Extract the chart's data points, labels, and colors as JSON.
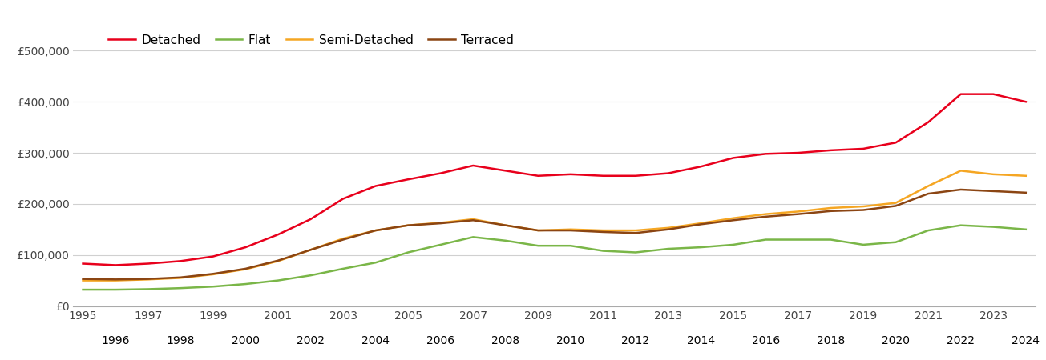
{
  "years": [
    1995,
    1996,
    1997,
    1998,
    1999,
    2000,
    2001,
    2002,
    2003,
    2004,
    2005,
    2006,
    2007,
    2008,
    2009,
    2010,
    2011,
    2012,
    2013,
    2014,
    2015,
    2016,
    2017,
    2018,
    2019,
    2020,
    2021,
    2022,
    2023,
    2024
  ],
  "detached": [
    83000,
    80000,
    83000,
    88000,
    97000,
    115000,
    140000,
    170000,
    210000,
    235000,
    248000,
    260000,
    275000,
    265000,
    255000,
    258000,
    255000,
    255000,
    260000,
    273000,
    290000,
    298000,
    300000,
    305000,
    308000,
    320000,
    360000,
    415000,
    415000,
    400000
  ],
  "flat": [
    32000,
    32000,
    33000,
    35000,
    38000,
    43000,
    50000,
    60000,
    73000,
    85000,
    105000,
    120000,
    135000,
    128000,
    118000,
    118000,
    108000,
    105000,
    112000,
    115000,
    120000,
    130000,
    130000,
    130000,
    120000,
    125000,
    148000,
    158000,
    155000,
    150000
  ],
  "semi_detached": [
    50000,
    50000,
    52000,
    55000,
    62000,
    72000,
    88000,
    110000,
    132000,
    148000,
    158000,
    163000,
    170000,
    158000,
    148000,
    150000,
    148000,
    148000,
    153000,
    162000,
    172000,
    180000,
    185000,
    192000,
    195000,
    202000,
    235000,
    265000,
    258000,
    255000
  ],
  "terraced": [
    53000,
    52000,
    53000,
    56000,
    63000,
    73000,
    89000,
    110000,
    130000,
    148000,
    158000,
    162000,
    168000,
    158000,
    148000,
    148000,
    145000,
    143000,
    150000,
    160000,
    168000,
    175000,
    180000,
    186000,
    188000,
    196000,
    220000,
    228000,
    225000,
    222000
  ],
  "colors": {
    "detached": "#e8001c",
    "flat": "#7ab648",
    "semi_detached": "#f5a623",
    "terraced": "#8b4513"
  },
  "ylim": [
    0,
    550000
  ],
  "yticks": [
    0,
    100000,
    200000,
    300000,
    400000,
    500000
  ],
  "ytick_labels": [
    "£0",
    "£100,000",
    "£200,000",
    "£300,000",
    "£400,000",
    "£500,000"
  ],
  "line_width": 1.8,
  "background_color": "#ffffff",
  "grid_color": "#d0d0d0",
  "legend_labels": [
    "Detached",
    "Flat",
    "Semi-Detached",
    "Terraced"
  ],
  "xlim_left": 1994.7,
  "xlim_right": 2024.3
}
